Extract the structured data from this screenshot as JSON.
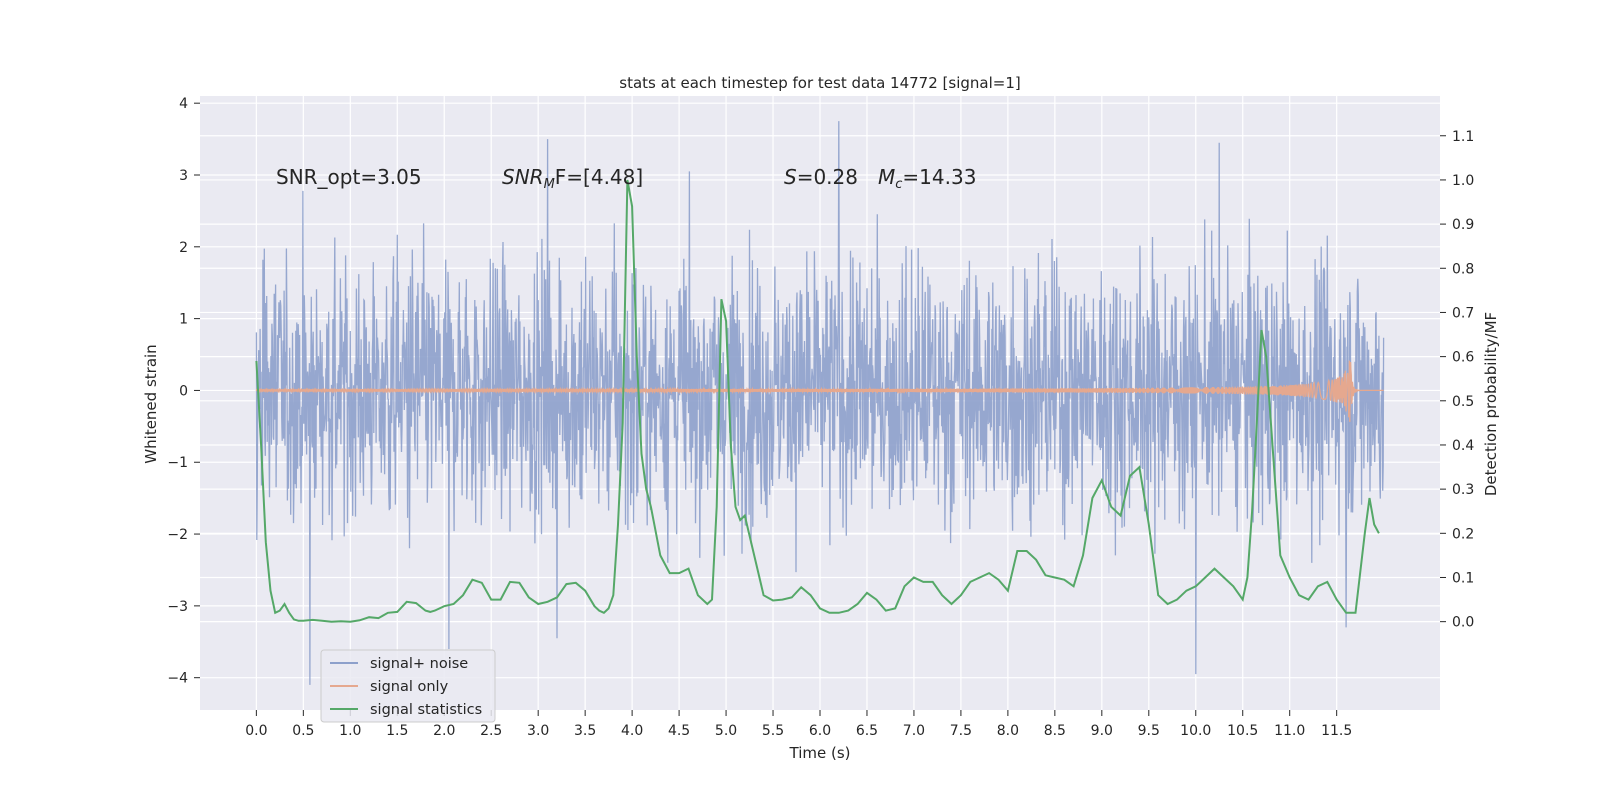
{
  "chart_data": {
    "type": "line",
    "title": "stats at each timestep for test data 14772 [signal=1]",
    "xlabel": "Time (s)",
    "ylabel_left": "Whitened strain",
    "ylabel_right": "Detection probability/MF",
    "xlim": [
      -0.6,
      12.6
    ],
    "ylim_left": [
      -4.45,
      4.1
    ],
    "ylim_right": [
      -0.2,
      1.19
    ],
    "x_ticks": [
      0.0,
      0.5,
      1.0,
      1.5,
      2.0,
      2.5,
      3.0,
      3.5,
      4.0,
      4.5,
      5.0,
      5.5,
      6.0,
      6.5,
      7.0,
      7.5,
      8.0,
      8.5,
      9.0,
      9.5,
      10.0,
      10.5,
      11.0,
      11.5
    ],
    "x_tick_labels": [
      "0.0",
      "0.5",
      "1.0",
      "1.5",
      "2.0",
      "2.5",
      "3.0",
      "3.5",
      "4.0",
      "4.5",
      "5.0",
      "5.5",
      "6.0",
      "6.5",
      "7.0",
      "7.5",
      "8.0",
      "8.5",
      "9.0",
      "9.5",
      "10.0",
      "10.5",
      "11.0",
      "11.5"
    ],
    "y_left_ticks": [
      4,
      3,
      2,
      1,
      0,
      -1,
      -2,
      -3,
      -4
    ],
    "y_left_tick_labels": [
      "4",
      "3",
      "2",
      "1",
      "0",
      "−1",
      "−2",
      "−3",
      "−4"
    ],
    "y_right_ticks": [
      1.1,
      1.0,
      0.9,
      0.8,
      0.7,
      0.6,
      0.5,
      0.4,
      0.3,
      0.2,
      0.1,
      0.0
    ],
    "y_right_tick_labels": [
      "1.1",
      "1.0",
      "0.9",
      "0.8",
      "0.7",
      "0.6",
      "0.5",
      "0.4",
      "0.3",
      "0.2",
      "0.1",
      "0.0"
    ],
    "grid": true,
    "legend_position": "bottom-left",
    "annotations": {
      "snr_opt": "SNR_opt=3.05",
      "snr_mf_main": "SNR",
      "snr_mf_sub": "M",
      "snr_mf_tail": "F=[4.48]",
      "s_symbol": "S",
      "s_value": "=0.28",
      "mc_symbol": "M",
      "mc_sub": "c",
      "mc_value": "=14.33"
    },
    "series": [
      {
        "name": "signal+ noise",
        "color": "#8da0cb",
        "axis": "left",
        "x_range": [
          0.0,
          12.0
        ],
        "typical_amplitude": 1.2,
        "peak_values": [
          {
            "x": 0.57,
            "y": -4.1
          },
          {
            "x": 2.05,
            "y": -3.6
          },
          {
            "x": 3.1,
            "y": 3.5
          },
          {
            "x": 3.2,
            "y": -3.45
          },
          {
            "x": 6.2,
            "y": 3.75
          },
          {
            "x": 10.0,
            "y": -3.95
          },
          {
            "x": 11.6,
            "y": -3.3
          },
          {
            "x": 10.25,
            "y": 3.45
          }
        ]
      },
      {
        "name": "signal only",
        "color": "#e5a88f",
        "axis": "left",
        "x_range": [
          0.0,
          12.0
        ],
        "chirp_peak_time": 11.65,
        "chirp_peak_amplitude": 0.45
      },
      {
        "name": "signal statistics",
        "color": "#55a868",
        "axis": "right",
        "x": [
          0.0,
          0.05,
          0.1,
          0.15,
          0.2,
          0.25,
          0.3,
          0.35,
          0.4,
          0.45,
          0.5,
          0.6,
          0.7,
          0.8,
          0.9,
          1.0,
          1.1,
          1.2,
          1.3,
          1.4,
          1.5,
          1.6,
          1.7,
          1.8,
          1.85,
          1.9,
          2.0,
          2.1,
          2.2,
          2.3,
          2.4,
          2.5,
          2.6,
          2.7,
          2.8,
          2.9,
          3.0,
          3.1,
          3.2,
          3.3,
          3.4,
          3.5,
          3.6,
          3.65,
          3.7,
          3.75,
          3.8,
          3.85,
          3.9,
          3.95,
          4.0,
          4.05,
          4.1,
          4.15,
          4.2,
          4.3,
          4.4,
          4.5,
          4.6,
          4.7,
          4.8,
          4.85,
          4.9,
          4.95,
          5.0,
          5.05,
          5.1,
          5.15,
          5.2,
          5.3,
          5.4,
          5.5,
          5.6,
          5.7,
          5.8,
          5.9,
          6.0,
          6.1,
          6.2,
          6.3,
          6.4,
          6.5,
          6.6,
          6.7,
          6.8,
          6.9,
          7.0,
          7.1,
          7.2,
          7.3,
          7.4,
          7.5,
          7.6,
          7.7,
          7.8,
          7.9,
          8.0,
          8.1,
          8.2,
          8.3,
          8.4,
          8.5,
          8.6,
          8.7,
          8.8,
          8.9,
          9.0,
          9.1,
          9.2,
          9.3,
          9.4,
          9.5,
          9.6,
          9.7,
          9.8,
          9.9,
          10.0,
          10.1,
          10.2,
          10.3,
          10.4,
          10.5,
          10.55,
          10.6,
          10.65,
          10.7,
          10.75,
          10.8,
          10.9,
          11.0,
          11.1,
          11.2,
          11.3,
          11.4,
          11.5,
          11.6,
          11.7,
          11.8,
          11.85,
          11.9,
          11.95
        ],
        "values": [
          0.59,
          0.4,
          0.18,
          0.07,
          0.02,
          0.025,
          0.04,
          0.02,
          0.005,
          0.002,
          0.002,
          0.004,
          0.002,
          0.0,
          0.001,
          0.0,
          0.003,
          0.01,
          0.008,
          0.02,
          0.022,
          0.045,
          0.042,
          0.025,
          0.022,
          0.025,
          0.035,
          0.04,
          0.06,
          0.095,
          0.088,
          0.05,
          0.05,
          0.09,
          0.088,
          0.055,
          0.04,
          0.045,
          0.055,
          0.085,
          0.088,
          0.07,
          0.035,
          0.025,
          0.02,
          0.03,
          0.06,
          0.22,
          0.45,
          1.0,
          0.94,
          0.6,
          0.38,
          0.3,
          0.26,
          0.15,
          0.11,
          0.11,
          0.12,
          0.06,
          0.04,
          0.05,
          0.26,
          0.73,
          0.68,
          0.4,
          0.26,
          0.23,
          0.24,
          0.15,
          0.06,
          0.048,
          0.05,
          0.055,
          0.078,
          0.06,
          0.03,
          0.02,
          0.02,
          0.025,
          0.04,
          0.065,
          0.05,
          0.025,
          0.03,
          0.08,
          0.1,
          0.09,
          0.09,
          0.06,
          0.04,
          0.06,
          0.09,
          0.1,
          0.11,
          0.095,
          0.07,
          0.16,
          0.16,
          0.14,
          0.105,
          0.1,
          0.095,
          0.08,
          0.15,
          0.28,
          0.32,
          0.26,
          0.24,
          0.33,
          0.35,
          0.22,
          0.06,
          0.04,
          0.05,
          0.07,
          0.08,
          0.1,
          0.12,
          0.1,
          0.08,
          0.05,
          0.1,
          0.25,
          0.45,
          0.66,
          0.6,
          0.45,
          0.15,
          0.1,
          0.06,
          0.05,
          0.08,
          0.09,
          0.05,
          0.02,
          0.02,
          0.2,
          0.28,
          0.22,
          0.2
        ]
      }
    ]
  }
}
